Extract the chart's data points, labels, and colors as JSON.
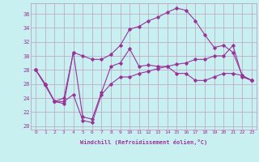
{
  "xlabel": "Windchill (Refroidissement éolien,°C)",
  "xlim": [
    -0.5,
    23.5
  ],
  "ylim": [
    19.5,
    37.5
  ],
  "yticks": [
    20,
    22,
    24,
    26,
    28,
    30,
    32,
    34,
    36
  ],
  "xticks": [
    0,
    1,
    2,
    3,
    4,
    5,
    6,
    7,
    8,
    9,
    10,
    11,
    12,
    13,
    14,
    15,
    16,
    17,
    18,
    19,
    20,
    21,
    22,
    23
  ],
  "bg_color": "#c8f0f0",
  "grid_color": "#c0a0c0",
  "line_color": "#993399",
  "line1_y": [
    28.0,
    25.8,
    23.5,
    23.2,
    30.5,
    21.3,
    21.0,
    24.8,
    28.5,
    29.0,
    31.0,
    28.5,
    28.7,
    28.5,
    28.5,
    27.5,
    27.5,
    26.5,
    26.5,
    27.0,
    27.5,
    27.5,
    27.2,
    26.5
  ],
  "line2_y": [
    28.0,
    26.0,
    23.5,
    24.0,
    30.5,
    30.0,
    29.5,
    29.5,
    30.2,
    31.5,
    33.8,
    34.2,
    35.0,
    35.5,
    36.2,
    36.8,
    36.5,
    35.0,
    33.0,
    31.2,
    31.5,
    30.5,
    27.2,
    26.5
  ],
  "line3_y": [
    28.0,
    26.0,
    23.5,
    23.5,
    24.5,
    20.8,
    20.5,
    24.5,
    26.0,
    27.0,
    27.0,
    27.5,
    27.8,
    28.2,
    28.5,
    28.8,
    29.0,
    29.5,
    29.5,
    30.0,
    30.0,
    31.5,
    27.0,
    26.5
  ]
}
